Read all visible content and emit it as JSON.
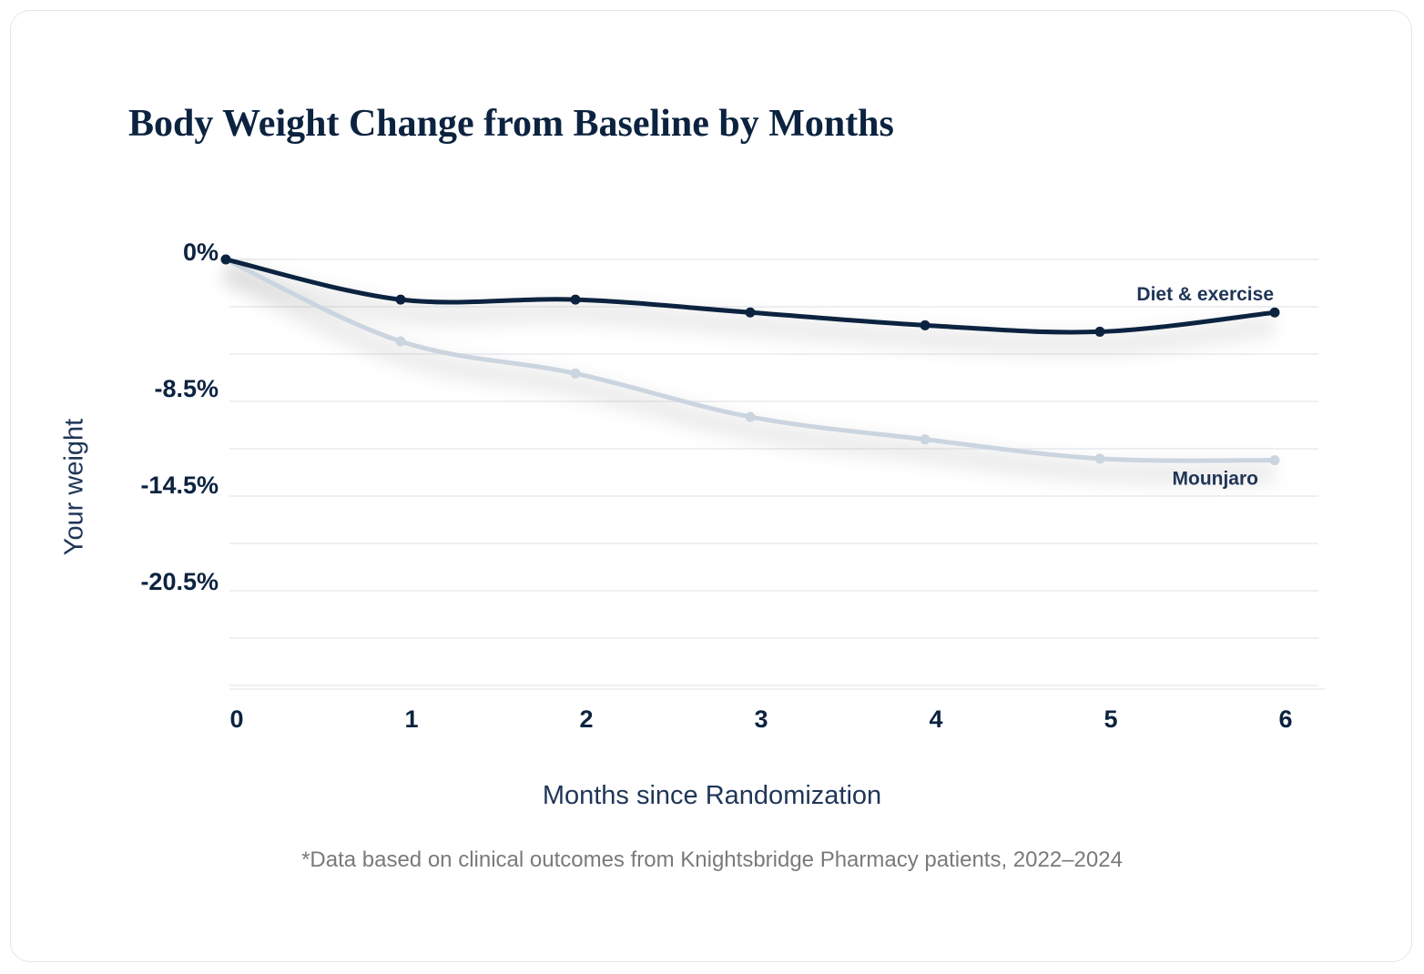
{
  "chart_data": {
    "type": "line",
    "title": "Body Weight Change from Baseline by Months",
    "xlabel": "Months since Randomization",
    "ylabel": "Your weight",
    "x": [
      0,
      1,
      2,
      3,
      4,
      5,
      6
    ],
    "x_tick_labels": [
      "0",
      "1",
      "2",
      "3",
      "4",
      "5",
      "6"
    ],
    "y_tick_labels": [
      "0%",
      "-8.5%",
      "-14.5%",
      "-20.5%"
    ],
    "grid": true,
    "series": [
      {
        "name": "Diet & exercise",
        "color": "#0c2340",
        "values": [
          0,
          -2.5,
          -2.5,
          -3.3,
          -4.1,
          -4.5,
          -3.3
        ]
      },
      {
        "name": "Mounjaro",
        "color": "#cbd5df",
        "values": [
          0,
          -5.1,
          -7.1,
          -9.8,
          -11.2,
          -12.4,
          -12.5
        ]
      }
    ]
  },
  "footnote": "*Data based on clinical outcomes from Knightsbridge Pharmacy patients, 2022–2024"
}
